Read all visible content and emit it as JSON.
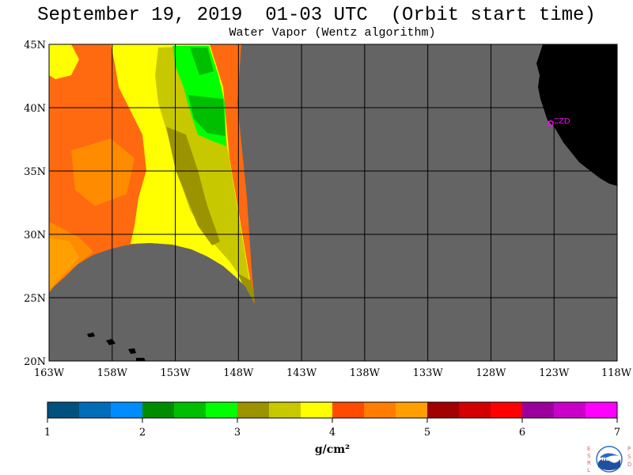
{
  "header": {
    "title": "September 19, 2019  01-03 UTC  (Orbit start time)",
    "subtitle": "Water Vapor (Wentz algorithm)"
  },
  "map": {
    "lat_labels": [
      "45N",
      "40N",
      "35N",
      "30N",
      "25N",
      "20N"
    ],
    "lon_labels": [
      "163W",
      "158W",
      "153W",
      "148W",
      "143W",
      "138W",
      "133W",
      "128W",
      "123W",
      "118W"
    ],
    "lat_range": [
      20,
      45
    ],
    "lon_range": [
      -163,
      -118
    ],
    "station_label": "CZD",
    "colors": {
      "no_data": "#646464",
      "land": "#000000",
      "grid": "#000000",
      "station": "#ff00ff"
    }
  },
  "colorbar": {
    "tick_labels": [
      "1",
      "2",
      "3",
      "4",
      "5",
      "6",
      "7"
    ],
    "unit": "g/cm²",
    "colors": [
      "#00517e",
      "#006db8",
      "#008cff",
      "#008c00",
      "#00be00",
      "#00ff00",
      "#9c9300",
      "#c8c800",
      "#ffff00",
      "#ff4b00",
      "#ff7d00",
      "#ffa000",
      "#a00000",
      "#d20000",
      "#ff0000",
      "#9c009c",
      "#c800c8",
      "#ff00ff"
    ]
  },
  "logo": {
    "left_letters": "ESRL",
    "right_letters": "PSD",
    "center_text": "NOAA"
  }
}
